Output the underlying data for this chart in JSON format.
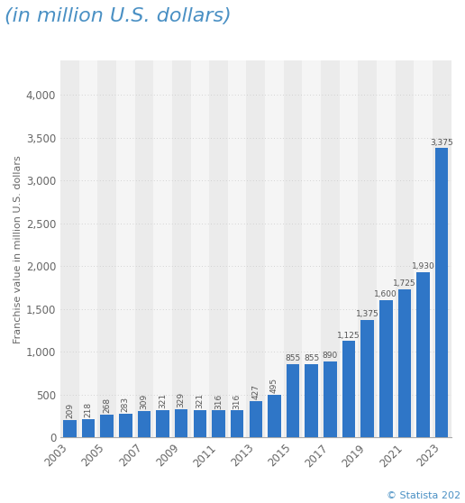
{
  "years": [
    2003,
    2004,
    2005,
    2006,
    2007,
    2008,
    2009,
    2010,
    2011,
    2012,
    2013,
    2014,
    2015,
    2016,
    2017,
    2018,
    2019,
    2020,
    2021,
    2022,
    2023
  ],
  "values": [
    209,
    218,
    268,
    283,
    309,
    321,
    329,
    321,
    316,
    316,
    427,
    495,
    855,
    855,
    890,
    1125,
    1375,
    1600,
    1725,
    1930,
    3375
  ],
  "bar_color": "#2f76c7",
  "title": "(in million U.S. dollars)",
  "ylabel": "Franchise value in million U.S. dollars",
  "ylim": [
    0,
    4400
  ],
  "yticks": [
    0,
    500,
    1000,
    1500,
    2000,
    2500,
    3000,
    3500,
    4000
  ],
  "background_color": "#ffffff",
  "plot_bg_odd": "#ebebeb",
  "plot_bg_even": "#f5f5f5",
  "title_color": "#4a90c4",
  "title_fontsize": 16,
  "ylabel_fontsize": 8,
  "tick_fontsize": 8.5,
  "label_fontsize": 6.5,
  "footer_text": "© Statista 202",
  "footer_color": "#4a90c4",
  "footer_fontsize": 8
}
